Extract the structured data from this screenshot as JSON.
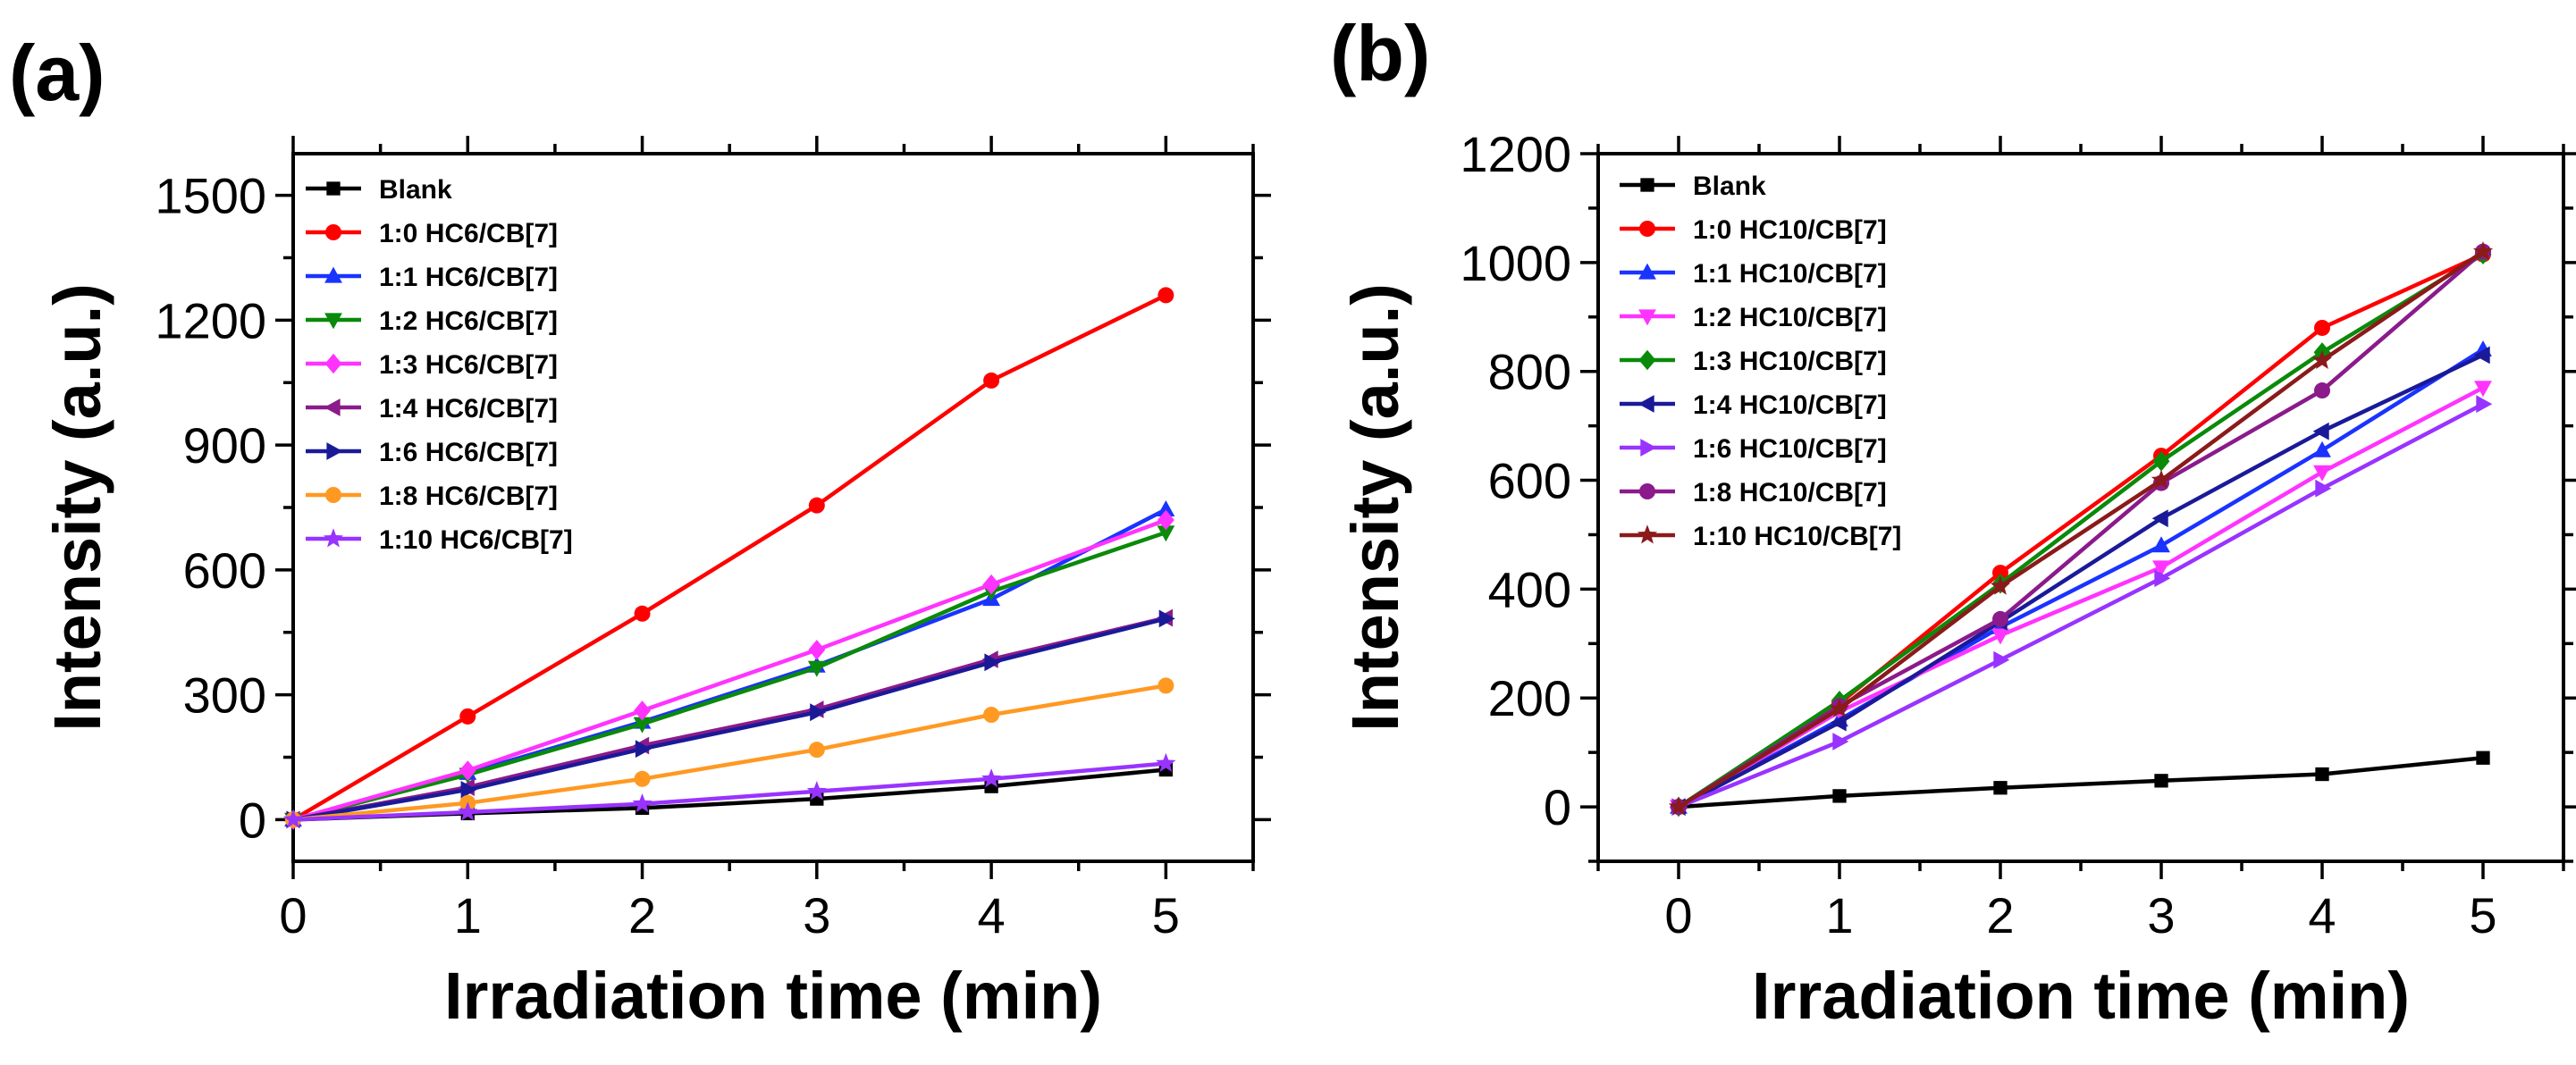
{
  "chart_data": [
    {
      "type": "line",
      "panel_label": "(a)",
      "title": "",
      "xlabel": "Irradiation time (min)",
      "ylabel": "Intensity (a.u.)",
      "xlim": [
        0,
        5.5
      ],
      "ylim": [
        -100,
        1600
      ],
      "xticks": [
        0,
        1,
        2,
        3,
        4,
        5
      ],
      "yticks": [
        0,
        300,
        600,
        900,
        1200,
        1500
      ],
      "grid": false,
      "legend_position": "top-left",
      "x": [
        0,
        1,
        2,
        3,
        4,
        5
      ],
      "series": [
        {
          "name": "Blank",
          "color": "#000000",
          "marker": "square",
          "values": [
            0,
            15,
            28,
            50,
            80,
            120
          ]
        },
        {
          "name": "1:0 HC6/CB[7]",
          "color": "#ff0000",
          "marker": "circle",
          "values": [
            0,
            248,
            495,
            755,
            1055,
            1260
          ]
        },
        {
          "name": "1:1 HC6/CB[7]",
          "color": "#1a33ff",
          "marker": "triangle-up",
          "values": [
            0,
            112,
            235,
            370,
            530,
            745
          ]
        },
        {
          "name": "1:2 HC6/CB[7]",
          "color": "#0a8a0a",
          "marker": "triangle-down",
          "values": [
            0,
            108,
            230,
            365,
            548,
            690
          ]
        },
        {
          "name": "1:3 HC6/CB[7]",
          "color": "#ff33ff",
          "marker": "diamond",
          "values": [
            0,
            118,
            262,
            408,
            565,
            720
          ]
        },
        {
          "name": "1:4 HC6/CB[7]",
          "color": "#8b1a8b",
          "marker": "triangle-left",
          "values": [
            0,
            78,
            178,
            265,
            385,
            485
          ]
        },
        {
          "name": "1:6 HC6/CB[7]",
          "color": "#1a1a99",
          "marker": "triangle-right",
          "values": [
            0,
            72,
            170,
            258,
            378,
            483
          ]
        },
        {
          "name": "1:8 HC6/CB[7]",
          "color": "#ff9922",
          "marker": "circle",
          "values": [
            0,
            40,
            98,
            168,
            252,
            322
          ]
        },
        {
          "name": "1:10 HC6/CB[7]",
          "color": "#9933ff",
          "marker": "star",
          "values": [
            0,
            18,
            38,
            68,
            98,
            135
          ]
        }
      ]
    },
    {
      "type": "line",
      "panel_label": "(b)",
      "title": "",
      "xlabel": "Irradiation time (min)",
      "ylabel": "Intensity (a.u.)",
      "xlim": [
        -0.5,
        5.5
      ],
      "ylim": [
        -100,
        1200
      ],
      "xticks": [
        0,
        1,
        2,
        3,
        4,
        5
      ],
      "yticks": [
        0,
        200,
        400,
        600,
        800,
        1000,
        1200
      ],
      "grid": false,
      "legend_position": "top-left",
      "x": [
        0,
        1,
        2,
        3,
        4,
        5
      ],
      "series": [
        {
          "name": "Blank",
          "color": "#000000",
          "marker": "square",
          "values": [
            0,
            20,
            35,
            48,
            60,
            90
          ]
        },
        {
          "name": "1:0 HC10/CB[7]",
          "color": "#ff0000",
          "marker": "circle",
          "values": [
            0,
            190,
            430,
            645,
            880,
            1015
          ]
        },
        {
          "name": "1:1 HC10/CB[7]",
          "color": "#1a33ff",
          "marker": "triangle-up",
          "values": [
            0,
            160,
            330,
            480,
            655,
            840
          ]
        },
        {
          "name": "1:2 HC10/CB[7]",
          "color": "#ff33ff",
          "marker": "triangle-down",
          "values": [
            0,
            175,
            315,
            440,
            615,
            770
          ]
        },
        {
          "name": "1:3 HC10/CB[7]",
          "color": "#0a8a0a",
          "marker": "diamond",
          "values": [
            0,
            195,
            410,
            635,
            835,
            1015
          ]
        },
        {
          "name": "1:4 HC10/CB[7]",
          "color": "#1a1a99",
          "marker": "triangle-left",
          "values": [
            0,
            155,
            340,
            530,
            690,
            830
          ]
        },
        {
          "name": "1:6 HC10/CB[7]",
          "color": "#9933ff",
          "marker": "triangle-right",
          "values": [
            0,
            120,
            270,
            420,
            585,
            740
          ]
        },
        {
          "name": "1:8 HC10/CB[7]",
          "color": "#8b1a8b",
          "marker": "circle",
          "values": [
            0,
            185,
            345,
            595,
            765,
            1020
          ]
        },
        {
          "name": "1:10 HC10/CB[7]",
          "color": "#8b1a1a",
          "marker": "star",
          "values": [
            0,
            180,
            405,
            600,
            820,
            1020
          ]
        }
      ]
    }
  ]
}
